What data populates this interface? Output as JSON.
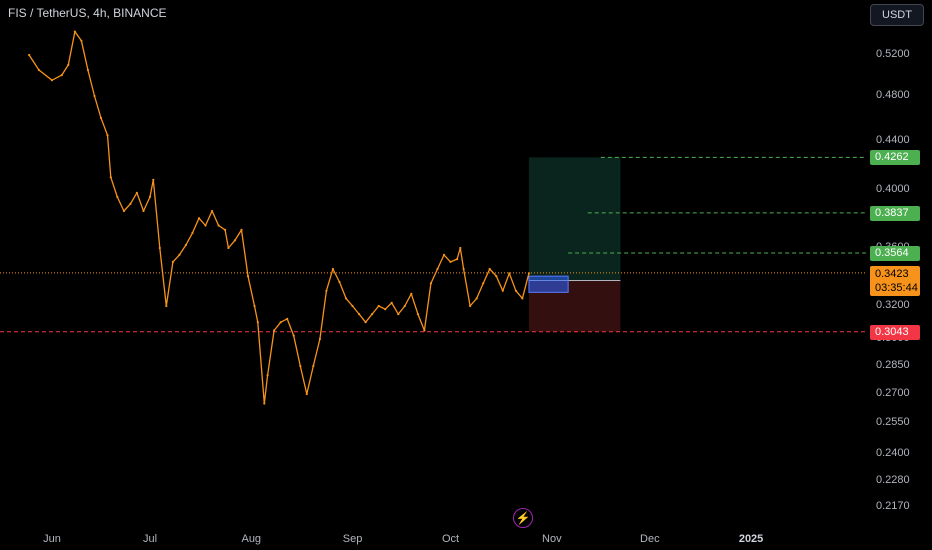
{
  "header": {
    "title": "FIS / TetherUS, 4h, BINANCE",
    "currency": "USDT"
  },
  "colors": {
    "price": "#f7931a",
    "target": "#4caf50",
    "stop": "#f23645",
    "entry": "#2962ff",
    "background": "#000000"
  },
  "icons": {
    "bolt": "lightning-icon"
  },
  "chart_data": {
    "type": "line",
    "symbol": "FIS/USDT",
    "interval": "4h",
    "exchange": "BINANCE",
    "y_ticks": [
      "0.5200",
      "0.4800",
      "0.4400",
      "0.4000",
      "0.3600",
      "0.3200",
      "0.3000",
      "0.2850",
      "0.2700",
      "0.2550",
      "0.2400",
      "0.2280",
      "0.2170"
    ],
    "x_ticks": [
      {
        "label": "Jun",
        "date": "2024-06-01"
      },
      {
        "label": "Jul",
        "date": "2024-07-01"
      },
      {
        "label": "Aug",
        "date": "2024-08-01"
      },
      {
        "label": "Sep",
        "date": "2024-09-01"
      },
      {
        "label": "Oct",
        "date": "2024-10-01"
      },
      {
        "label": "Nov",
        "date": "2024-11-01"
      },
      {
        "label": "Dec",
        "date": "2024-12-01"
      },
      {
        "label": "2025",
        "date": "2025-01-01",
        "year": true
      }
    ],
    "series": [
      {
        "points": [
          [
            "2024-05-25",
            0.52
          ],
          [
            "2024-05-28",
            0.505
          ],
          [
            "2024-06-01",
            0.495
          ],
          [
            "2024-06-04",
            0.5
          ],
          [
            "2024-06-06",
            0.51
          ],
          [
            "2024-06-08",
            0.545
          ],
          [
            "2024-06-10",
            0.535
          ],
          [
            "2024-06-12",
            0.505
          ],
          [
            "2024-06-14",
            0.48
          ],
          [
            "2024-06-16",
            0.46
          ],
          [
            "2024-06-18",
            0.445
          ],
          [
            "2024-06-19",
            0.41
          ],
          [
            "2024-06-21",
            0.395
          ],
          [
            "2024-06-23",
            0.385
          ],
          [
            "2024-06-25",
            0.39
          ],
          [
            "2024-06-27",
            0.398
          ],
          [
            "2024-06-29",
            0.385
          ],
          [
            "2024-07-01",
            0.395
          ],
          [
            "2024-07-02",
            0.408
          ],
          [
            "2024-07-04",
            0.36
          ],
          [
            "2024-07-06",
            0.32
          ],
          [
            "2024-07-08",
            0.35
          ],
          [
            "2024-07-10",
            0.355
          ],
          [
            "2024-07-12",
            0.362
          ],
          [
            "2024-07-14",
            0.37
          ],
          [
            "2024-07-16",
            0.38
          ],
          [
            "2024-07-18",
            0.375
          ],
          [
            "2024-07-20",
            0.385
          ],
          [
            "2024-07-22",
            0.375
          ],
          [
            "2024-07-24",
            0.372
          ],
          [
            "2024-07-25",
            0.36
          ],
          [
            "2024-07-27",
            0.365
          ],
          [
            "2024-07-29",
            0.372
          ],
          [
            "2024-07-31",
            0.34
          ],
          [
            "2024-08-02",
            0.32
          ],
          [
            "2024-08-03",
            0.31
          ],
          [
            "2024-08-05",
            0.265
          ],
          [
            "2024-08-06",
            0.28
          ],
          [
            "2024-08-08",
            0.305
          ],
          [
            "2024-08-10",
            0.31
          ],
          [
            "2024-08-12",
            0.312
          ],
          [
            "2024-08-14",
            0.302
          ],
          [
            "2024-08-16",
            0.285
          ],
          [
            "2024-08-18",
            0.27
          ],
          [
            "2024-08-20",
            0.285
          ],
          [
            "2024-08-22",
            0.3
          ],
          [
            "2024-08-24",
            0.33
          ],
          [
            "2024-08-26",
            0.345
          ],
          [
            "2024-08-28",
            0.336
          ],
          [
            "2024-08-30",
            0.325
          ],
          [
            "2024-09-01",
            0.32
          ],
          [
            "2024-09-03",
            0.315
          ],
          [
            "2024-09-05",
            0.31
          ],
          [
            "2024-09-07",
            0.315
          ],
          [
            "2024-09-09",
            0.32
          ],
          [
            "2024-09-11",
            0.318
          ],
          [
            "2024-09-13",
            0.322
          ],
          [
            "2024-09-15",
            0.315
          ],
          [
            "2024-09-17",
            0.32
          ],
          [
            "2024-09-19",
            0.328
          ],
          [
            "2024-09-21",
            0.315
          ],
          [
            "2024-09-23",
            0.305
          ],
          [
            "2024-09-25",
            0.335
          ],
          [
            "2024-09-27",
            0.345
          ],
          [
            "2024-09-29",
            0.355
          ],
          [
            "2024-10-01",
            0.35
          ],
          [
            "2024-10-03",
            0.352
          ],
          [
            "2024-10-04",
            0.36
          ],
          [
            "2024-10-05",
            0.345
          ],
          [
            "2024-10-07",
            0.32
          ],
          [
            "2024-10-09",
            0.325
          ],
          [
            "2024-10-11",
            0.335
          ],
          [
            "2024-10-13",
            0.345
          ],
          [
            "2024-10-15",
            0.34
          ],
          [
            "2024-10-17",
            0.33
          ],
          [
            "2024-10-19",
            0.342
          ],
          [
            "2024-10-21",
            0.33
          ],
          [
            "2024-10-23",
            0.325
          ],
          [
            "2024-10-25",
            0.342
          ]
        ]
      }
    ],
    "current_price": {
      "value": "0.3423",
      "countdown": "03:35:44"
    },
    "targets": [
      {
        "value": "0.4262",
        "x_from": "2024-11-16"
      },
      {
        "value": "0.3837",
        "x_from": "2024-11-12"
      },
      {
        "value": "0.3564",
        "x_from": "2024-11-06"
      }
    ],
    "stop_loss": {
      "value": "0.3043"
    },
    "position": {
      "type": "long",
      "entry": 0.337,
      "target": 0.4262,
      "stop": 0.3043,
      "start": "2024-10-25",
      "end": "2024-11-22",
      "entry_box": {
        "start": "2024-10-25",
        "end": "2024-11-06",
        "low": 0.329,
        "high": 0.34
      }
    }
  }
}
